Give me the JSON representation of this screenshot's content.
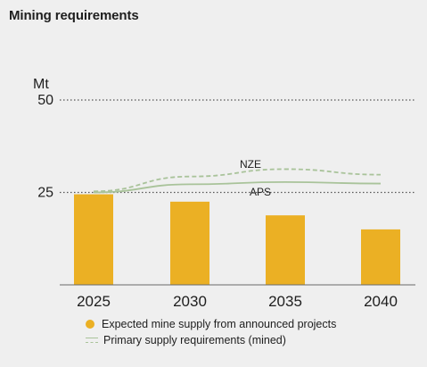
{
  "title": "Mining requirements",
  "colors": {
    "bar": "#ebb024",
    "line": "#a9c39a",
    "gridline": "#555555",
    "axis": "#6a6a6a"
  },
  "chart_data": {
    "type": "bar",
    "title": "Mining requirements",
    "ylabel": "Mt",
    "ylim": [
      0,
      50
    ],
    "yticks": [
      25,
      50
    ],
    "grid": "dotted lines at 25 and 50",
    "categories": [
      "2025",
      "2030",
      "2035",
      "2040"
    ],
    "series": [
      {
        "name": "Expected mine supply from announced projects",
        "type": "bar",
        "values": [
          24.5,
          22.5,
          18.8,
          15.0
        ]
      },
      {
        "name": "NZE",
        "type": "line",
        "style": "dashed",
        "values": [
          25.3,
          29.3,
          31.3,
          29.8
        ]
      },
      {
        "name": "APS",
        "type": "line",
        "style": "solid",
        "values": [
          25.0,
          27.2,
          27.8,
          27.4
        ]
      }
    ],
    "annotations": [
      "NZE",
      "APS"
    ],
    "legend": {
      "position": "bottom",
      "entries": [
        "Expected mine supply from announced projects",
        "Primary supply requirements (mined)"
      ]
    }
  }
}
